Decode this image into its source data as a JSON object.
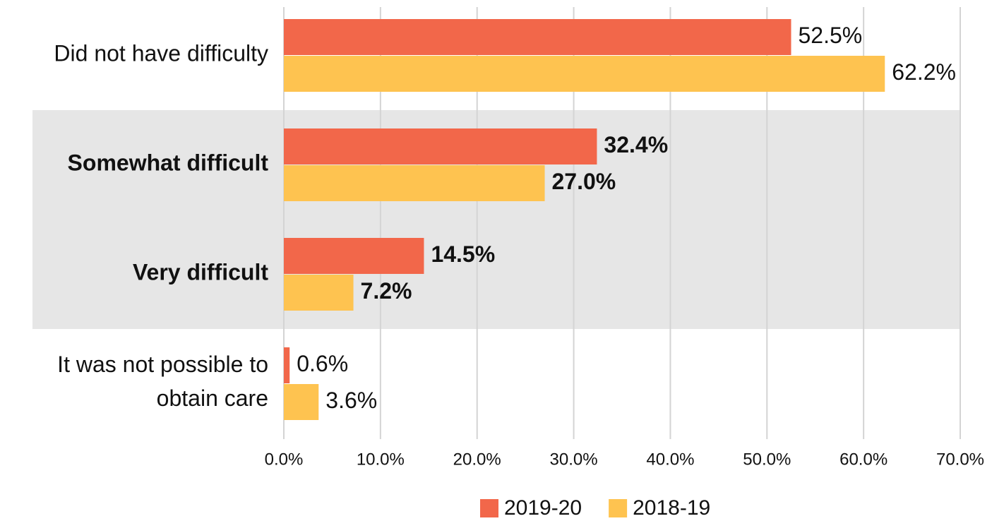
{
  "chart_data": {
    "type": "hbar",
    "categories": [
      "Did not have difficulty",
      "Somewhat difficult",
      "Very difficult",
      "It was not possible to obtain care"
    ],
    "highlighted_categories": [
      1,
      2
    ],
    "series": [
      {
        "name": "2019-20",
        "color": "#f2674a",
        "values": [
          52.5,
          32.4,
          14.5,
          0.6
        ],
        "value_labels": [
          "52.5%",
          "32.4%",
          "14.5%",
          "0.6%"
        ]
      },
      {
        "name": "2018-19",
        "color": "#fec350",
        "values": [
          62.2,
          27.0,
          7.2,
          3.6
        ],
        "value_labels": [
          "62.2%",
          "27.0%",
          "7.2%",
          "3.6%"
        ]
      }
    ],
    "xlim": [
      0,
      70
    ],
    "xticks": [
      {
        "value": 0,
        "label": "0.0%"
      },
      {
        "value": 10,
        "label": "10.0%"
      },
      {
        "value": 20,
        "label": "20.0%"
      },
      {
        "value": 30,
        "label": "30.0%"
      },
      {
        "value": 40,
        "label": "40.0%"
      },
      {
        "value": 50,
        "label": "50.0%"
      },
      {
        "value": 60,
        "label": "60.0%"
      },
      {
        "value": 70,
        "label": "70.0%"
      }
    ],
    "grid": true,
    "legend": "bottom"
  }
}
